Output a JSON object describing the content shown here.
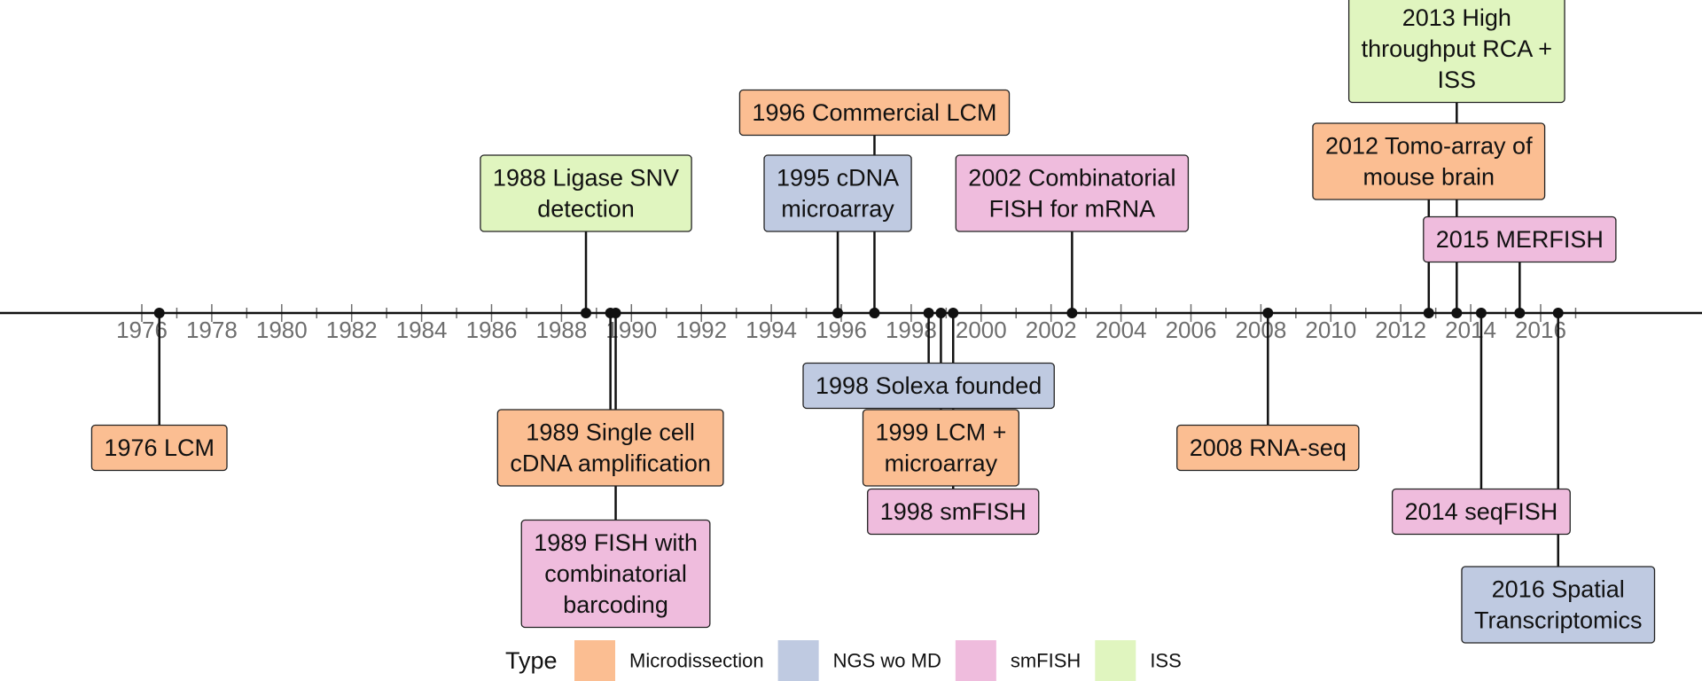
{
  "chart_data": {
    "type": "timeline",
    "x_ticks": [
      1976,
      1978,
      1980,
      1982,
      1984,
      1986,
      1988,
      1990,
      1992,
      1994,
      1996,
      1998,
      2000,
      2002,
      2004,
      2006,
      2008,
      2010,
      2012,
      2014,
      2016
    ],
    "types": [
      {
        "name": "Microdissection",
        "color": "#fbbe92"
      },
      {
        "name": "NGS wo MD",
        "color": "#bfcae1"
      },
      {
        "name": "smFISH",
        "color": "#efbcdd"
      },
      {
        "name": "ISS",
        "color": "#e0f5bf"
      }
    ],
    "events": [
      {
        "year": 1976.5,
        "label": [
          "1976 LCM"
        ],
        "type": "Microdissection",
        "level": -2
      },
      {
        "year": 1988.7,
        "label": [
          "1988 Ligase SNV",
          "detection"
        ],
        "type": "ISS",
        "level": 2
      },
      {
        "year": 1989.4,
        "label": [
          "1989 Single cell",
          "cDNA amplification"
        ],
        "type": "Microdissection",
        "level": -2
      },
      {
        "year": 1989.55,
        "label": [
          "1989 FISH with",
          "combinatorial",
          "barcoding"
        ],
        "type": "smFISH",
        "level": -4
      },
      {
        "year": 1995.9,
        "label": [
          "1995 cDNA",
          "microarray"
        ],
        "type": "NGS wo MD",
        "level": 2
      },
      {
        "year": 1996.95,
        "label": [
          "1996 Commercial LCM"
        ],
        "type": "Microdissection",
        "level": 3
      },
      {
        "year": 1998.5,
        "label": [
          "1998 Solexa founded"
        ],
        "type": "NGS wo MD",
        "level": -1
      },
      {
        "year": 1998.85,
        "label": [
          "1999 LCM +",
          "microarray"
        ],
        "type": "Microdissection",
        "level": -2
      },
      {
        "year": 1999.2,
        "label": [
          "1998 smFISH"
        ],
        "type": "smFISH",
        "level": -3
      },
      {
        "year": 2002.6,
        "label": [
          "2002 Combinatorial",
          "FISH for mRNA"
        ],
        "type": "smFISH",
        "level": 2
      },
      {
        "year": 2008.2,
        "label": [
          "2008 RNA-seq"
        ],
        "type": "Microdissection",
        "level": -2
      },
      {
        "year": 2012.8,
        "label": [
          "2012 Tomo-array of",
          "mouse brain"
        ],
        "type": "Microdissection",
        "level": 2.5
      },
      {
        "year": 2013.6,
        "label": [
          "2013 High",
          "throughput RCA +",
          "ISS"
        ],
        "type": "ISS",
        "level": 4
      },
      {
        "year": 2014.3,
        "label": [
          "2014 seqFISH"
        ],
        "type": "smFISH",
        "level": -3
      },
      {
        "year": 2015.4,
        "label": [
          "2015 MERFISH"
        ],
        "type": "smFISH",
        "level": 1.5
      },
      {
        "year": 2016.5,
        "label": [
          "2016 Spatial",
          "Transcriptomics"
        ],
        "type": "NGS wo MD",
        "level": -5
      }
    ],
    "legend": {
      "title": "Type",
      "position": "bottom"
    },
    "title": "",
    "xlabel": "",
    "ylabel": ""
  }
}
